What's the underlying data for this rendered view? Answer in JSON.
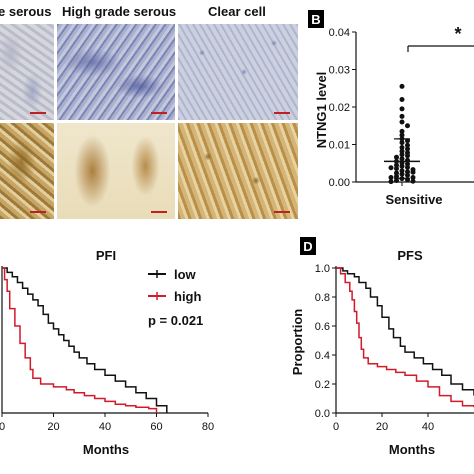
{
  "panelA": {
    "columns": [
      "e serous",
      "High grade serous",
      "Clear cell"
    ]
  },
  "panelB": {
    "letter": "B",
    "ylabel": "NTNG1 level",
    "xlabel": "Sensitive",
    "yticks": [
      "0.04",
      "0.03",
      "0.02",
      "0.01",
      "0.00"
    ],
    "significance": "*"
  },
  "panelC": {
    "title": "PFI",
    "xlabel": "Months",
    "xticks": [
      "0",
      "20",
      "40",
      "60",
      "80"
    ],
    "legend": [
      {
        "label": "low",
        "color": "#111111"
      },
      {
        "label": "high",
        "color": "#d11a2a"
      }
    ],
    "pvalue": "p = 0.021"
  },
  "panelD": {
    "letter": "D",
    "title": "PFS",
    "ylabel": "Proportion",
    "xlabel": "Months",
    "yticks": [
      "1.0",
      "0.8",
      "0.6",
      "0.4",
      "0.2",
      "0.0"
    ],
    "xticks": [
      "0",
      "20",
      "40"
    ]
  },
  "chart_data": [
    {
      "type": "scatter",
      "panel": "B",
      "xlabel": "Sensitive",
      "ylabel": "NTNG1 level",
      "ylim": [
        0,
        0.04
      ],
      "categories": [
        "Sensitive"
      ],
      "summary": {
        "mean": 0.0055,
        "sd_low": 0.001,
        "sd_high": 0.0115
      },
      "values": [
        0.0255,
        0.022,
        0.0195,
        0.0175,
        0.016,
        0.015,
        0.0135,
        0.0125,
        0.0115,
        0.011,
        0.0105,
        0.0098,
        0.0092,
        0.0088,
        0.0082,
        0.0078,
        0.0073,
        0.007,
        0.0066,
        0.0062,
        0.0058,
        0.0055,
        0.0051,
        0.0048,
        0.0045,
        0.0042,
        0.0039,
        0.0036,
        0.0033,
        0.003,
        0.0027,
        0.0024,
        0.0021,
        0.0018,
        0.0015,
        0.0012,
        0.0009,
        0.0006,
        0.0004,
        0.0002,
        0.0001,
        0.0012,
        0.0026,
        0.0038
      ]
    },
    {
      "type": "line",
      "panel": "C",
      "title": "PFI",
      "xlabel": "Months",
      "xlim": [
        0,
        80
      ],
      "ylim": [
        0,
        1
      ],
      "series": [
        {
          "name": "low",
          "x": [
            0,
            2,
            4,
            6,
            8,
            10,
            12,
            14,
            16,
            18,
            20,
            22,
            24,
            26,
            28,
            30,
            33,
            36,
            40,
            44,
            48,
            52,
            56,
            60,
            64
          ],
          "y": [
            1.0,
            0.97,
            0.94,
            0.9,
            0.86,
            0.82,
            0.78,
            0.74,
            0.68,
            0.62,
            0.58,
            0.54,
            0.5,
            0.46,
            0.42,
            0.38,
            0.34,
            0.3,
            0.26,
            0.22,
            0.18,
            0.14,
            0.1,
            0.05,
            0.0
          ]
        },
        {
          "name": "high",
          "x": [
            0,
            1,
            2,
            3,
            5,
            7,
            9,
            11,
            12,
            15,
            20,
            25,
            28,
            32,
            36,
            40,
            44,
            48,
            52,
            57,
            60
          ],
          "y": [
            1.0,
            0.92,
            0.84,
            0.72,
            0.6,
            0.48,
            0.38,
            0.3,
            0.24,
            0.2,
            0.18,
            0.16,
            0.14,
            0.12,
            0.1,
            0.08,
            0.06,
            0.05,
            0.04,
            0.03,
            0.0
          ]
        }
      ]
    },
    {
      "type": "line",
      "panel": "D",
      "title": "PFS",
      "xlabel": "Months",
      "ylabel": "Proportion",
      "xlim": [
        0,
        60
      ],
      "ylim": [
        0,
        1
      ],
      "series": [
        {
          "name": "low",
          "x": [
            0,
            3,
            5,
            8,
            10,
            13,
            15,
            18,
            20,
            23,
            25,
            28,
            30,
            34,
            38,
            42,
            46,
            50,
            55,
            60
          ],
          "y": [
            1.0,
            0.98,
            0.96,
            0.94,
            0.9,
            0.86,
            0.8,
            0.74,
            0.66,
            0.58,
            0.52,
            0.46,
            0.42,
            0.38,
            0.34,
            0.3,
            0.26,
            0.2,
            0.16,
            0.12
          ]
        },
        {
          "name": "high",
          "x": [
            0,
            2,
            4,
            6,
            7,
            8,
            9,
            10,
            11,
            12,
            14,
            18,
            22,
            26,
            30,
            35,
            40,
            45,
            50,
            55,
            60
          ],
          "y": [
            1.0,
            0.96,
            0.9,
            0.84,
            0.78,
            0.7,
            0.62,
            0.52,
            0.44,
            0.38,
            0.34,
            0.32,
            0.3,
            0.28,
            0.26,
            0.22,
            0.18,
            0.12,
            0.08,
            0.05,
            0.04
          ]
        }
      ]
    }
  ]
}
